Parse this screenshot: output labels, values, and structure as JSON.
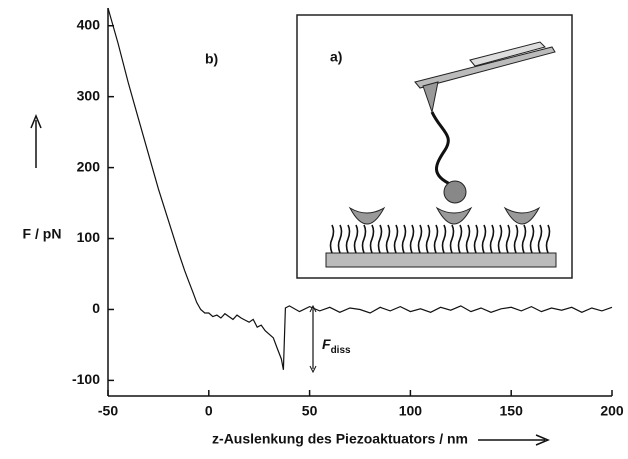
{
  "chart_data": {
    "type": "line",
    "x_label": "z-Auslenkung des Piezoaktuators / nm",
    "y_label": "F / pN",
    "annotations": [
      "b)",
      "a)"
    ],
    "force_label": {
      "text": "F",
      "subscript": "diss"
    },
    "xlim": [
      -50,
      200
    ],
    "xticks": [
      -50,
      0,
      50,
      100,
      150,
      200
    ],
    "ylim": [
      -122,
      425
    ],
    "yticks": [
      -100,
      0,
      100,
      200,
      300,
      400
    ],
    "color": "#111111",
    "x": [
      -50,
      -45,
      -40,
      -35,
      -30,
      -25,
      -20,
      -15,
      -12,
      -10,
      -8,
      -6,
      -4,
      -2,
      0,
      2,
      4,
      6,
      8,
      10,
      12,
      14,
      16,
      18,
      20,
      22,
      24,
      26,
      28,
      30,
      32,
      34,
      36,
      37,
      38,
      40,
      45,
      50,
      55,
      60,
      65,
      70,
      75,
      80,
      85,
      90,
      95,
      100,
      105,
      110,
      115,
      120,
      125,
      130,
      135,
      140,
      145,
      150,
      155,
      160,
      165,
      170,
      175,
      180,
      185,
      190,
      195,
      200
    ],
    "values": [
      425,
      375,
      320,
      270,
      220,
      170,
      125,
      80,
      55,
      40,
      25,
      10,
      0,
      -5,
      -5,
      -10,
      -8,
      -12,
      -6,
      -10,
      -14,
      -8,
      -12,
      -15,
      -18,
      -14,
      -25,
      -22,
      -30,
      -35,
      -40,
      -55,
      -70,
      -85,
      2,
      5,
      -3,
      4,
      -2,
      3,
      -4,
      2,
      0,
      -5,
      3,
      -2,
      4,
      -3,
      1,
      -4,
      3,
      -1,
      5,
      -3,
      2,
      -4,
      1,
      3,
      -2,
      4,
      -3,
      2,
      -1,
      3,
      -4,
      2,
      -2,
      3
    ]
  }
}
